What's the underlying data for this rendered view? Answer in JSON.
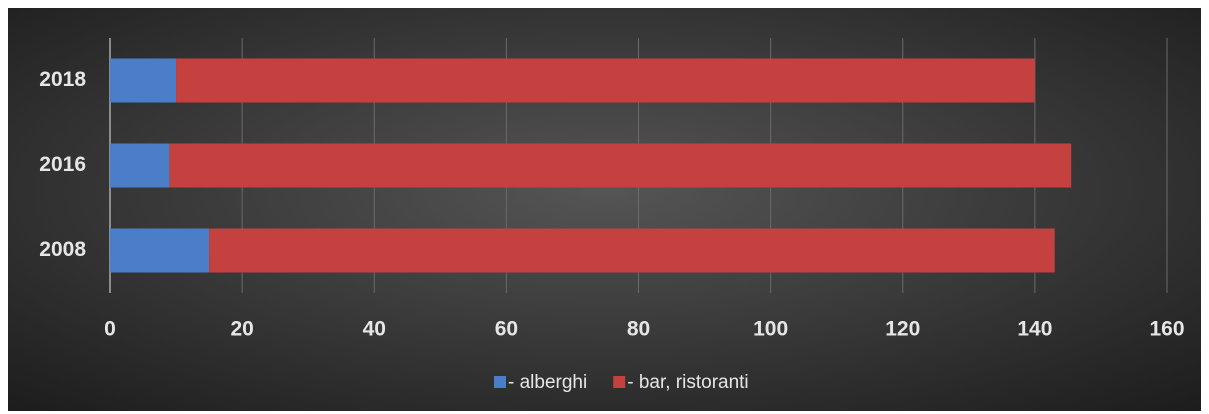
{
  "chart_data": {
    "type": "stacked-bar-horizontal",
    "categories": [
      "2008",
      "2016",
      "2018"
    ],
    "series": [
      {
        "name": "- alberghi",
        "color": "#4a7ec9",
        "values": [
          15,
          9,
          10
        ]
      },
      {
        "name": "- bar, ristoranti",
        "color": "#c4413f",
        "values": [
          128,
          136.5,
          130
        ]
      }
    ],
    "xlim": [
      0,
      160
    ],
    "xticks": [
      0,
      20,
      40,
      60,
      80,
      100,
      120,
      140,
      160
    ],
    "grid": true,
    "legend": "bottom"
  }
}
